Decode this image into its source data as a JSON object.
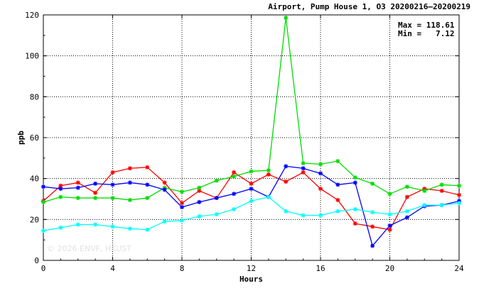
{
  "chart_data": {
    "type": "line",
    "title": "Airport, Pump House 1, O3 20200216–20200219",
    "xlabel": "Hours",
    "ylabel": "ppb",
    "xlim": [
      0,
      24
    ],
    "ylim": [
      0,
      120
    ],
    "xticks": [
      "0",
      "4",
      "8",
      "12",
      "16",
      "20",
      "24"
    ],
    "yticks": [
      "0",
      "20",
      "40",
      "60",
      "80",
      "100",
      "120"
    ],
    "grid": true,
    "max_label": "Max = 118.61",
    "min_label": "Min =   7.12",
    "watermark": "© 2026  ENVF, HKUST",
    "x": [
      0,
      1,
      2,
      3,
      4,
      5,
      6,
      7,
      8,
      9,
      10,
      11,
      12,
      13,
      14,
      15,
      16,
      17,
      18,
      19,
      20,
      21,
      22,
      23,
      24
    ],
    "series": [
      {
        "color": "#ff0000",
        "values": [
          29,
          36.5,
          38,
          33,
          43,
          45,
          45.5,
          38,
          28,
          34,
          30.5,
          43,
          37.5,
          42,
          38.5,
          43,
          35,
          29.5,
          18,
          16.5,
          15,
          31,
          35,
          34,
          32
        ]
      },
      {
        "color": "#00dd00",
        "values": [
          28.5,
          31,
          30.5,
          30.5,
          30.5,
          29.5,
          30.5,
          35.5,
          33.5,
          35.5,
          39,
          41,
          43.5,
          44,
          118.61,
          47.5,
          47,
          48.5,
          40.5,
          37.5,
          32.5,
          36,
          34,
          37,
          36.5
        ]
      },
      {
        "color": "#0000ff",
        "values": [
          36,
          35,
          35.5,
          37.5,
          37,
          38,
          37,
          34.5,
          26,
          28.5,
          30.5,
          32.5,
          35,
          31,
          46,
          45,
          42.5,
          37,
          38,
          7.12,
          17,
          21,
          26.5,
          27,
          29
        ]
      },
      {
        "color": "#00ffff",
        "values": [
          14.5,
          16,
          17.5,
          17.5,
          16.5,
          15.5,
          15,
          19,
          19.5,
          21.5,
          22.5,
          25,
          29,
          31,
          24,
          22,
          22,
          24,
          25,
          23.5,
          22.5,
          24,
          27,
          27,
          28
        ]
      }
    ]
  }
}
